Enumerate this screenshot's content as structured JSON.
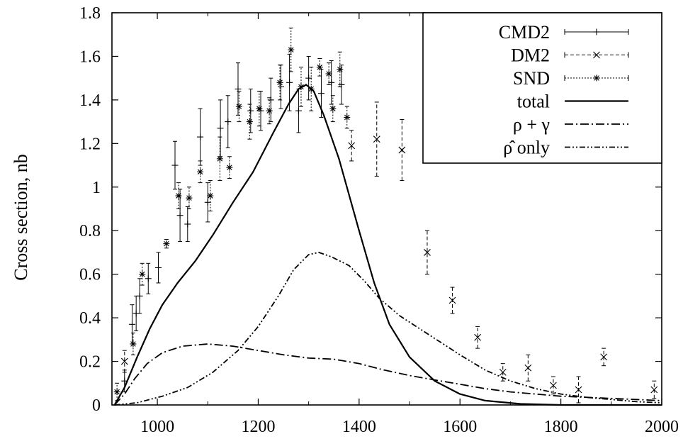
{
  "chart_data": {
    "type": "scatter",
    "title": "",
    "xlabel": "",
    "ylabel": "Cross section, nb",
    "xlim": [
      910,
      2000
    ],
    "ylim": [
      0,
      1.8
    ],
    "xticks": [
      1000,
      1200,
      1400,
      1600,
      1800,
      2000
    ],
    "yticks": [
      0,
      0.2,
      0.4,
      0.6,
      0.8,
      1,
      1.2,
      1.4,
      1.6,
      1.8
    ],
    "xtick_labels": [
      "1000",
      "1200",
      "1400",
      "1600",
      "1800",
      "2000"
    ],
    "ytick_labels": [
      "0",
      "0.2",
      "0.4",
      "0.6",
      "0.8",
      "1",
      "1.2",
      "1.4",
      "1.6",
      "1.8"
    ],
    "grid": false,
    "legend_position": "top-right",
    "series": [
      {
        "name": "CMD2",
        "kind": "points",
        "marker": "plus",
        "errorbar_style": "solid",
        "points": [
          {
            "x": 935,
            "y": 0.11,
            "err": 0.05
          },
          {
            "x": 950,
            "y": 0.37,
            "err": 0.09
          },
          {
            "x": 958,
            "y": 0.42,
            "err": 0.08
          },
          {
            "x": 965,
            "y": 0.5,
            "err": 0.08
          },
          {
            "x": 982,
            "y": 0.58,
            "err": 0.07
          },
          {
            "x": 1002,
            "y": 0.63,
            "err": 0.07
          },
          {
            "x": 1035,
            "y": 1.1,
            "err": 0.11
          },
          {
            "x": 1045,
            "y": 0.87,
            "err": 0.12
          },
          {
            "x": 1060,
            "y": 0.83,
            "err": 0.08
          },
          {
            "x": 1085,
            "y": 1.23,
            "err": 0.13
          },
          {
            "x": 1100,
            "y": 0.93,
            "err": 0.09
          },
          {
            "x": 1125,
            "y": 1.27,
            "err": 0.13
          },
          {
            "x": 1140,
            "y": 1.3,
            "err": 0.12
          },
          {
            "x": 1160,
            "y": 1.45,
            "err": 0.12
          },
          {
            "x": 1185,
            "y": 1.35,
            "err": 0.1
          },
          {
            "x": 1205,
            "y": 1.35,
            "err": 0.09
          },
          {
            "x": 1225,
            "y": 1.4,
            "err": 0.1
          },
          {
            "x": 1245,
            "y": 1.46,
            "err": 0.1
          },
          {
            "x": 1262,
            "y": 1.48,
            "err": 0.13
          },
          {
            "x": 1280,
            "y": 1.35,
            "err": 0.1
          },
          {
            "x": 1300,
            "y": 1.5,
            "err": 0.1
          },
          {
            "x": 1325,
            "y": 1.43,
            "err": 0.11
          },
          {
            "x": 1345,
            "y": 1.48,
            "err": 0.1
          },
          {
            "x": 1365,
            "y": 1.47,
            "err": 0.09
          }
        ]
      },
      {
        "name": "DM2",
        "kind": "points",
        "marker": "x",
        "errorbar_style": "dashed",
        "points": [
          {
            "x": 935,
            "y": 0.2,
            "err": 0.05
          },
          {
            "x": 1385,
            "y": 1.19,
            "err": 0.07
          },
          {
            "x": 1435,
            "y": 1.22,
            "err": 0.17
          },
          {
            "x": 1485,
            "y": 1.17,
            "err": 0.14
          },
          {
            "x": 1535,
            "y": 0.7,
            "err": 0.1
          },
          {
            "x": 1585,
            "y": 0.48,
            "err": 0.06
          },
          {
            "x": 1635,
            "y": 0.31,
            "err": 0.05
          },
          {
            "x": 1685,
            "y": 0.15,
            "err": 0.04
          },
          {
            "x": 1735,
            "y": 0.17,
            "err": 0.06
          },
          {
            "x": 1785,
            "y": 0.09,
            "err": 0.04
          },
          {
            "x": 1835,
            "y": 0.07,
            "err": 0.06
          },
          {
            "x": 1885,
            "y": 0.22,
            "err": 0.04
          },
          {
            "x": 1985,
            "y": 0.07,
            "err": 0.04
          }
        ]
      },
      {
        "name": "SND",
        "kind": "points",
        "marker": "star",
        "errorbar_style": "dotted",
        "points": [
          {
            "x": 920,
            "y": 0.06,
            "err": 0.04
          },
          {
            "x": 952,
            "y": 0.28,
            "err": 0.05
          },
          {
            "x": 970,
            "y": 0.6,
            "err": 0.05
          },
          {
            "x": 1018,
            "y": 0.74,
            "err": 0.02
          },
          {
            "x": 1042,
            "y": 0.96,
            "err": 0.06
          },
          {
            "x": 1063,
            "y": 0.95,
            "err": 0.05
          },
          {
            "x": 1085,
            "y": 1.07,
            "err": 0.05
          },
          {
            "x": 1105,
            "y": 0.96,
            "err": 0.07
          },
          {
            "x": 1124,
            "y": 1.13,
            "err": 0.1
          },
          {
            "x": 1143,
            "y": 1.09,
            "err": 0.05
          },
          {
            "x": 1162,
            "y": 1.37,
            "err": 0.07
          },
          {
            "x": 1183,
            "y": 1.3,
            "err": 0.08
          },
          {
            "x": 1202,
            "y": 1.36,
            "err": 0.08
          },
          {
            "x": 1222,
            "y": 1.35,
            "err": 0.06
          },
          {
            "x": 1243,
            "y": 1.48,
            "err": 0.08
          },
          {
            "x": 1265,
            "y": 1.63,
            "err": 0.1
          },
          {
            "x": 1285,
            "y": 1.46,
            "err": 0.09
          },
          {
            "x": 1305,
            "y": 1.45,
            "err": 0.1
          },
          {
            "x": 1322,
            "y": 1.55,
            "err": 0.04
          },
          {
            "x": 1340,
            "y": 1.52,
            "err": 0.05
          },
          {
            "x": 1348,
            "y": 1.36,
            "err": 0.06
          },
          {
            "x": 1362,
            "y": 1.54,
            "err": 0.08
          },
          {
            "x": 1376,
            "y": 1.32,
            "err": 0.05
          }
        ]
      },
      {
        "name": "total",
        "kind": "line",
        "dash": "solid",
        "points": [
          {
            "x": 915,
            "y": 0.0
          },
          {
            "x": 935,
            "y": 0.08
          },
          {
            "x": 960,
            "y": 0.22
          },
          {
            "x": 985,
            "y": 0.35
          },
          {
            "x": 1010,
            "y": 0.46
          },
          {
            "x": 1040,
            "y": 0.56
          },
          {
            "x": 1075,
            "y": 0.66
          },
          {
            "x": 1110,
            "y": 0.78
          },
          {
            "x": 1150,
            "y": 0.93
          },
          {
            "x": 1190,
            "y": 1.07
          },
          {
            "x": 1230,
            "y": 1.25
          },
          {
            "x": 1260,
            "y": 1.38
          },
          {
            "x": 1280,
            "y": 1.45
          },
          {
            "x": 1295,
            "y": 1.47
          },
          {
            "x": 1310,
            "y": 1.44
          },
          {
            "x": 1330,
            "y": 1.33
          },
          {
            "x": 1360,
            "y": 1.13
          },
          {
            "x": 1400,
            "y": 0.8
          },
          {
            "x": 1430,
            "y": 0.56
          },
          {
            "x": 1460,
            "y": 0.37
          },
          {
            "x": 1500,
            "y": 0.22
          },
          {
            "x": 1550,
            "y": 0.11
          },
          {
            "x": 1600,
            "y": 0.05
          },
          {
            "x": 1650,
            "y": 0.02
          },
          {
            "x": 1720,
            "y": 0.005
          },
          {
            "x": 1800,
            "y": 0.0
          },
          {
            "x": 2000,
            "y": 0.0
          }
        ]
      },
      {
        "name": "ρ + γ",
        "kind": "line",
        "dash": "dashdot",
        "points": [
          {
            "x": 915,
            "y": 0.0
          },
          {
            "x": 935,
            "y": 0.05
          },
          {
            "x": 955,
            "y": 0.12
          },
          {
            "x": 980,
            "y": 0.19
          },
          {
            "x": 1010,
            "y": 0.24
          },
          {
            "x": 1050,
            "y": 0.27
          },
          {
            "x": 1100,
            "y": 0.28
          },
          {
            "x": 1150,
            "y": 0.27
          },
          {
            "x": 1200,
            "y": 0.25
          },
          {
            "x": 1250,
            "y": 0.23
          },
          {
            "x": 1300,
            "y": 0.215
          },
          {
            "x": 1350,
            "y": 0.21
          },
          {
            "x": 1400,
            "y": 0.19
          },
          {
            "x": 1450,
            "y": 0.16
          },
          {
            "x": 1500,
            "y": 0.135
          },
          {
            "x": 1550,
            "y": 0.115
          },
          {
            "x": 1600,
            "y": 0.095
          },
          {
            "x": 1650,
            "y": 0.075
          },
          {
            "x": 1700,
            "y": 0.06
          },
          {
            "x": 1750,
            "y": 0.05
          },
          {
            "x": 1800,
            "y": 0.04
          },
          {
            "x": 1850,
            "y": 0.035
          },
          {
            "x": 1900,
            "y": 0.03
          },
          {
            "x": 1950,
            "y": 0.025
          },
          {
            "x": 2000,
            "y": 0.02
          }
        ]
      },
      {
        "name": "ρ̂ only",
        "kind": "line",
        "dash": "dashdotdot",
        "points": [
          {
            "x": 915,
            "y": 0.0
          },
          {
            "x": 960,
            "y": 0.01
          },
          {
            "x": 1010,
            "y": 0.04
          },
          {
            "x": 1060,
            "y": 0.08
          },
          {
            "x": 1110,
            "y": 0.15
          },
          {
            "x": 1160,
            "y": 0.25
          },
          {
            "x": 1200,
            "y": 0.36
          },
          {
            "x": 1240,
            "y": 0.5
          },
          {
            "x": 1270,
            "y": 0.62
          },
          {
            "x": 1300,
            "y": 0.69
          },
          {
            "x": 1320,
            "y": 0.7
          },
          {
            "x": 1345,
            "y": 0.68
          },
          {
            "x": 1380,
            "y": 0.64
          },
          {
            "x": 1410,
            "y": 0.57
          },
          {
            "x": 1440,
            "y": 0.49
          },
          {
            "x": 1480,
            "y": 0.41
          },
          {
            "x": 1520,
            "y": 0.35
          },
          {
            "x": 1560,
            "y": 0.29
          },
          {
            "x": 1600,
            "y": 0.23
          },
          {
            "x": 1650,
            "y": 0.16
          },
          {
            "x": 1700,
            "y": 0.11
          },
          {
            "x": 1750,
            "y": 0.075
          },
          {
            "x": 1800,
            "y": 0.05
          },
          {
            "x": 1850,
            "y": 0.035
          },
          {
            "x": 1900,
            "y": 0.025
          },
          {
            "x": 1950,
            "y": 0.015
          },
          {
            "x": 2000,
            "y": 0.01
          }
        ]
      }
    ]
  }
}
